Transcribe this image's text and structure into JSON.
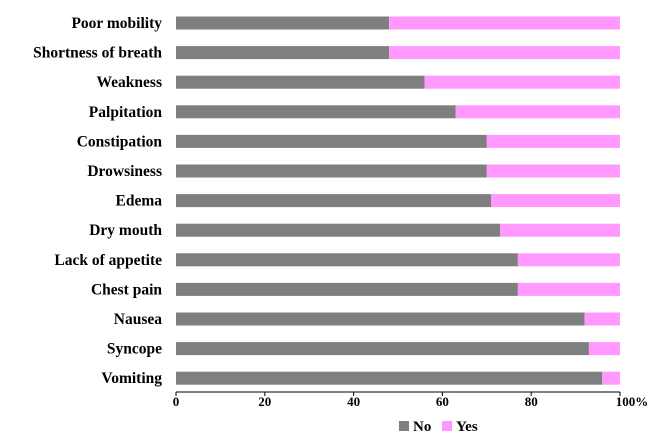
{
  "chart_data": {
    "type": "bar",
    "orientation": "horizontal",
    "stacked": true,
    "categories": [
      "Poor mobility",
      "Shortness of breath",
      "Weakness",
      "Palpitation",
      "Constipation",
      "Drowsiness",
      "Edema",
      "Dry mouth",
      "Lack of appetite",
      "Chest pain",
      "Nausea",
      "Syncope",
      "Vomiting"
    ],
    "series": [
      {
        "name": "No",
        "color": "#7f7f7f",
        "values": [
          48,
          48,
          56,
          63,
          70,
          70,
          71,
          73,
          77,
          77,
          92,
          93,
          96
        ]
      },
      {
        "name": "Yes",
        "color": "#ff99ff",
        "values": [
          52,
          52,
          44,
          37,
          30,
          30,
          29,
          27,
          23,
          23,
          8,
          7,
          4
        ]
      }
    ],
    "xlim": [
      0,
      100
    ],
    "x_ticks": [
      "0",
      "20",
      "40",
      "60",
      "80",
      "100%"
    ],
    "title": "",
    "xlabel": "",
    "ylabel": "",
    "grid": false,
    "legend_position": "bottom-center"
  }
}
